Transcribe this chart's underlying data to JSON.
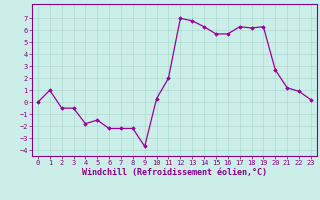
{
  "x": [
    0,
    1,
    2,
    3,
    4,
    5,
    6,
    7,
    8,
    9,
    10,
    11,
    12,
    13,
    14,
    15,
    16,
    17,
    18,
    19,
    20,
    21,
    22,
    23
  ],
  "y": [
    0.0,
    1.0,
    -0.5,
    -0.5,
    -1.8,
    -1.5,
    -2.2,
    -2.2,
    -2.2,
    -3.7,
    0.3,
    2.0,
    7.0,
    6.8,
    6.3,
    5.7,
    5.7,
    6.3,
    6.2,
    6.3,
    2.7,
    1.2,
    0.9,
    0.2
  ],
  "line_color": "#990099",
  "marker": "D",
  "marker_size": 1.8,
  "line_width": 0.9,
  "xlabel": "Windchill (Refroidissement éolien,°C)",
  "xlabel_fontsize": 6,
  "ylim": [
    -4.5,
    8.2
  ],
  "xlim": [
    -0.5,
    23.5
  ],
  "yticks": [
    -4,
    -3,
    -2,
    -1,
    0,
    1,
    2,
    3,
    4,
    5,
    6,
    7
  ],
  "xticks": [
    0,
    1,
    2,
    3,
    4,
    5,
    6,
    7,
    8,
    9,
    10,
    11,
    12,
    13,
    14,
    15,
    16,
    17,
    18,
    19,
    20,
    21,
    22,
    23
  ],
  "grid_color": "#aaddcc",
  "background_color": "#cceee8",
  "tick_label_fontsize": 5,
  "tick_color": "#880088",
  "axis_color": "#880088"
}
